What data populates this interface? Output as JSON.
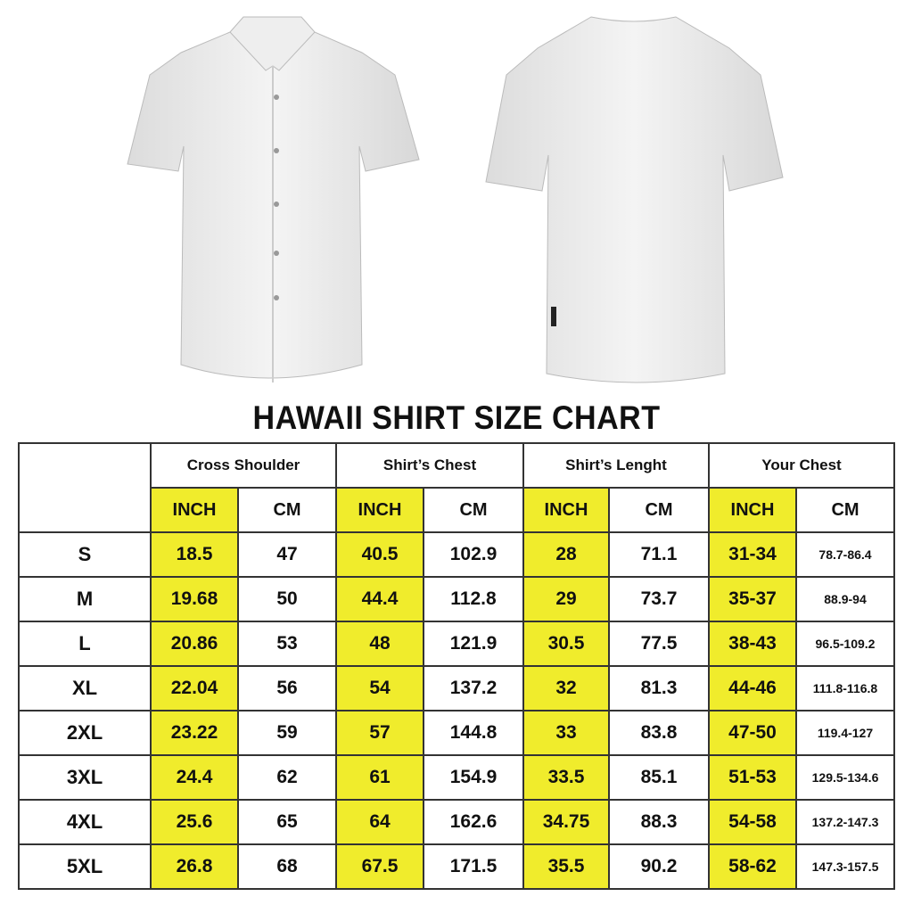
{
  "title": "HAWAII SHIRT SIZE CHART",
  "colors": {
    "inch_highlight": "#f0ec2c",
    "border": "#333333"
  },
  "images": {
    "front": "white-short-sleeve-shirt-front",
    "back": "white-short-sleeve-shirt-back"
  },
  "table": {
    "groups": [
      "Cross Shoulder",
      "Shirt’s Chest",
      "Shirt’s Lenght",
      "Your Chest"
    ],
    "units": [
      "INCH",
      "CM"
    ],
    "rows": [
      {
        "size": "S",
        "values": [
          "18.5",
          "47",
          "40.5",
          "102.9",
          "28",
          "71.1",
          "31-34",
          "78.7-86.4"
        ]
      },
      {
        "size": "M",
        "values": [
          "19.68",
          "50",
          "44.4",
          "112.8",
          "29",
          "73.7",
          "35-37",
          "88.9-94"
        ]
      },
      {
        "size": "L",
        "values": [
          "20.86",
          "53",
          "48",
          "121.9",
          "30.5",
          "77.5",
          "38-43",
          "96.5-109.2"
        ]
      },
      {
        "size": "XL",
        "values": [
          "22.04",
          "56",
          "54",
          "137.2",
          "32",
          "81.3",
          "44-46",
          "111.8-116.8"
        ]
      },
      {
        "size": "2XL",
        "values": [
          "23.22",
          "59",
          "57",
          "144.8",
          "33",
          "83.8",
          "47-50",
          "119.4-127"
        ]
      },
      {
        "size": "3XL",
        "values": [
          "24.4",
          "62",
          "61",
          "154.9",
          "33.5",
          "85.1",
          "51-53",
          "129.5-134.6"
        ]
      },
      {
        "size": "4XL",
        "values": [
          "25.6",
          "65",
          "64",
          "162.6",
          "34.75",
          "88.3",
          "54-58",
          "137.2-147.3"
        ]
      },
      {
        "size": "5XL",
        "values": [
          "26.8",
          "68",
          "67.5",
          "171.5",
          "35.5",
          "90.2",
          "58-62",
          "147.3-157.5"
        ]
      }
    ]
  }
}
